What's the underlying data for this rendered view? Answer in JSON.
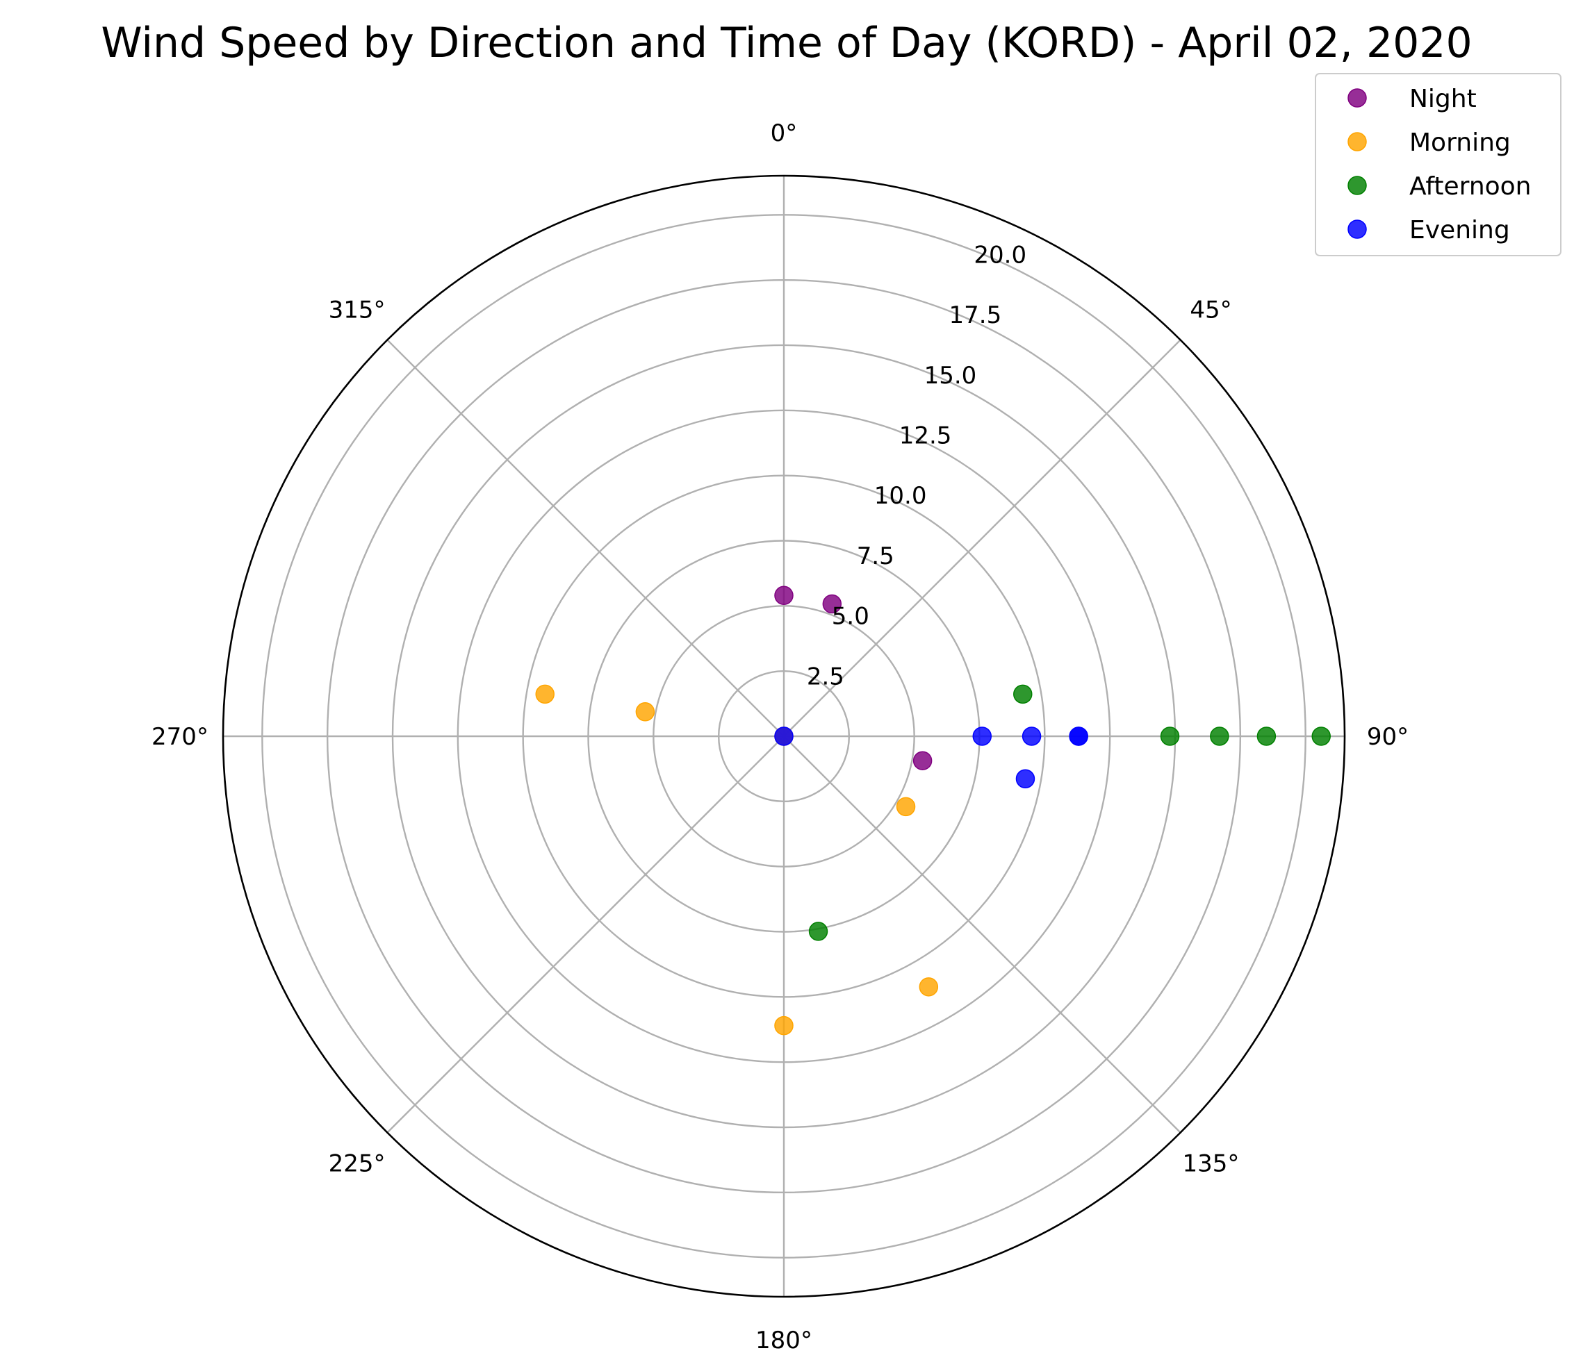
{
  "chart_data": {
    "type": "scatter",
    "projection": "polar",
    "title": "Wind Speed by Direction and Time of Day (KORD) - April 02, 2020",
    "theta_direction": "clockwise",
    "theta_zero": "top",
    "rlim": [
      0,
      21.5
    ],
    "grid": true,
    "legend_position": "top-right",
    "angle_ticks": [
      {
        "deg": 0,
        "label": "0°"
      },
      {
        "deg": 45,
        "label": "45°"
      },
      {
        "deg": 90,
        "label": "90°"
      },
      {
        "deg": 135,
        "label": "135°"
      },
      {
        "deg": 180,
        "label": "180°"
      },
      {
        "deg": 225,
        "label": "225°"
      },
      {
        "deg": 270,
        "label": "270°"
      },
      {
        "deg": 315,
        "label": "315°"
      }
    ],
    "radial_ticks": [
      {
        "value": 2.5,
        "label": "2.5"
      },
      {
        "value": 5.0,
        "label": "5.0"
      },
      {
        "value": 7.5,
        "label": "7.5"
      },
      {
        "value": 10.0,
        "label": "10.0"
      },
      {
        "value": 12.5,
        "label": "12.5"
      },
      {
        "value": 15.0,
        "label": "15.0"
      },
      {
        "value": 17.5,
        "label": "17.5"
      },
      {
        "value": 20.0,
        "label": "20.0"
      }
    ],
    "series": [
      {
        "name": "Night",
        "color": "#800080",
        "points": [
          {
            "direction": 0,
            "speed": 5.4
          },
          {
            "direction": 20,
            "speed": 5.4
          },
          {
            "direction": 100,
            "speed": 5.4
          },
          {
            "direction": 0,
            "speed": 0
          }
        ]
      },
      {
        "name": "Morning",
        "color": "#FFA500",
        "points": [
          {
            "direction": 280,
            "speed": 9.3
          },
          {
            "direction": 280,
            "speed": 5.4
          },
          {
            "direction": 120,
            "speed": 5.4
          },
          {
            "direction": 150,
            "speed": 11.1
          },
          {
            "direction": 180,
            "speed": 11.1
          },
          {
            "direction": 0,
            "speed": 0
          }
        ]
      },
      {
        "name": "Afternoon",
        "color": "#008000",
        "points": [
          {
            "direction": 80,
            "speed": 9.3
          },
          {
            "direction": 90,
            "speed": 14.8
          },
          {
            "direction": 90,
            "speed": 16.7
          },
          {
            "direction": 90,
            "speed": 18.5
          },
          {
            "direction": 90,
            "speed": 20.6
          },
          {
            "direction": 170,
            "speed": 7.6
          }
        ]
      },
      {
        "name": "Evening",
        "color": "#0000FF",
        "points": [
          {
            "direction": 90,
            "speed": 7.6
          },
          {
            "direction": 90,
            "speed": 9.5
          },
          {
            "direction": 90,
            "speed": 11.3
          },
          {
            "direction": 90,
            "speed": 11.3
          },
          {
            "direction": 100,
            "speed": 9.4
          },
          {
            "direction": 0,
            "speed": 0
          }
        ]
      }
    ]
  }
}
